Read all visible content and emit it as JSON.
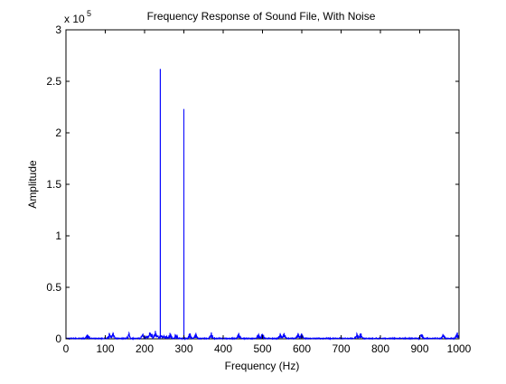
{
  "chart_data": {
    "type": "line",
    "title": "Frequency Response of Sound File, With Noise",
    "xlabel": "Frequency (Hz)",
    "ylabel": "Amplitude",
    "xlim": [
      0,
      1000
    ],
    "ylim": [
      0,
      300000
    ],
    "x_ticks": [
      0,
      100,
      200,
      300,
      400,
      500,
      600,
      700,
      800,
      900,
      1000
    ],
    "x_tick_labels": [
      "0",
      "100",
      "200",
      "300",
      "400",
      "500",
      "600",
      "700",
      "800",
      "900",
      "1000"
    ],
    "y_ticks": [
      0,
      50000,
      100000,
      150000,
      200000,
      250000,
      300000
    ],
    "y_tick_labels": [
      "0",
      "0.5",
      "1",
      "1.5",
      "2",
      "2.5",
      "3"
    ],
    "y_exponent_base": "x 10",
    "y_exponent_power": "5",
    "grid": false,
    "legend": false,
    "line_color": "#0000ff",
    "peaks": [
      {
        "x": 240,
        "y": 262000
      },
      {
        "x": 300,
        "y": 223000
      }
    ],
    "noise_floor_max": 6000
  }
}
